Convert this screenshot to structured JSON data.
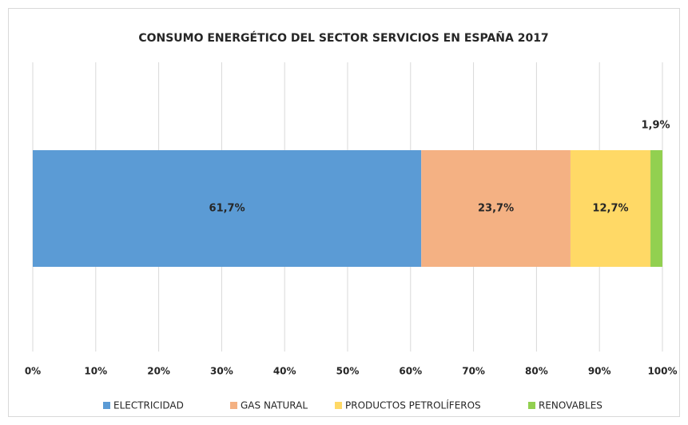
{
  "chart_data": {
    "type": "bar",
    "orientation": "horizontal",
    "stacked": true,
    "title": "CONSUMO ENERGÉTICO DEL SECTOR SERVICIOS EN ESPAÑA  2017",
    "categories": [
      null
    ],
    "series": [
      {
        "name": "ELECTRICIDAD",
        "color": "#5b9bd5",
        "values": [
          61.7
        ],
        "value_labels": [
          "61,7%"
        ]
      },
      {
        "name": "GAS NATURAL",
        "color": "#f4b183",
        "values": [
          23.7
        ],
        "value_labels": [
          "23,7%"
        ]
      },
      {
        "name": "PRODUCTOS PETROLÍFEROS",
        "color": "#ffd966",
        "values": [
          12.7
        ],
        "value_labels": [
          "12,7%"
        ]
      },
      {
        "name": "RENOVABLES",
        "color": "#92d050",
        "values": [
          1.9
        ],
        "value_labels": [
          "1,9%"
        ]
      }
    ],
    "xlim": [
      0,
      100
    ],
    "xticks": [
      {
        "value": 0,
        "label": "0%"
      },
      {
        "value": 10,
        "label": "10%"
      },
      {
        "value": 20,
        "label": "20%"
      },
      {
        "value": 30,
        "label": "30%"
      },
      {
        "value": 40,
        "label": "40%"
      },
      {
        "value": 50,
        "label": "50%"
      },
      {
        "value": 60,
        "label": "60%"
      },
      {
        "value": 70,
        "label": "70%"
      },
      {
        "value": 80,
        "label": "80%"
      },
      {
        "value": 90,
        "label": "90%"
      },
      {
        "value": 100,
        "label": "100%"
      }
    ],
    "grid": true,
    "legend": "bottom"
  }
}
